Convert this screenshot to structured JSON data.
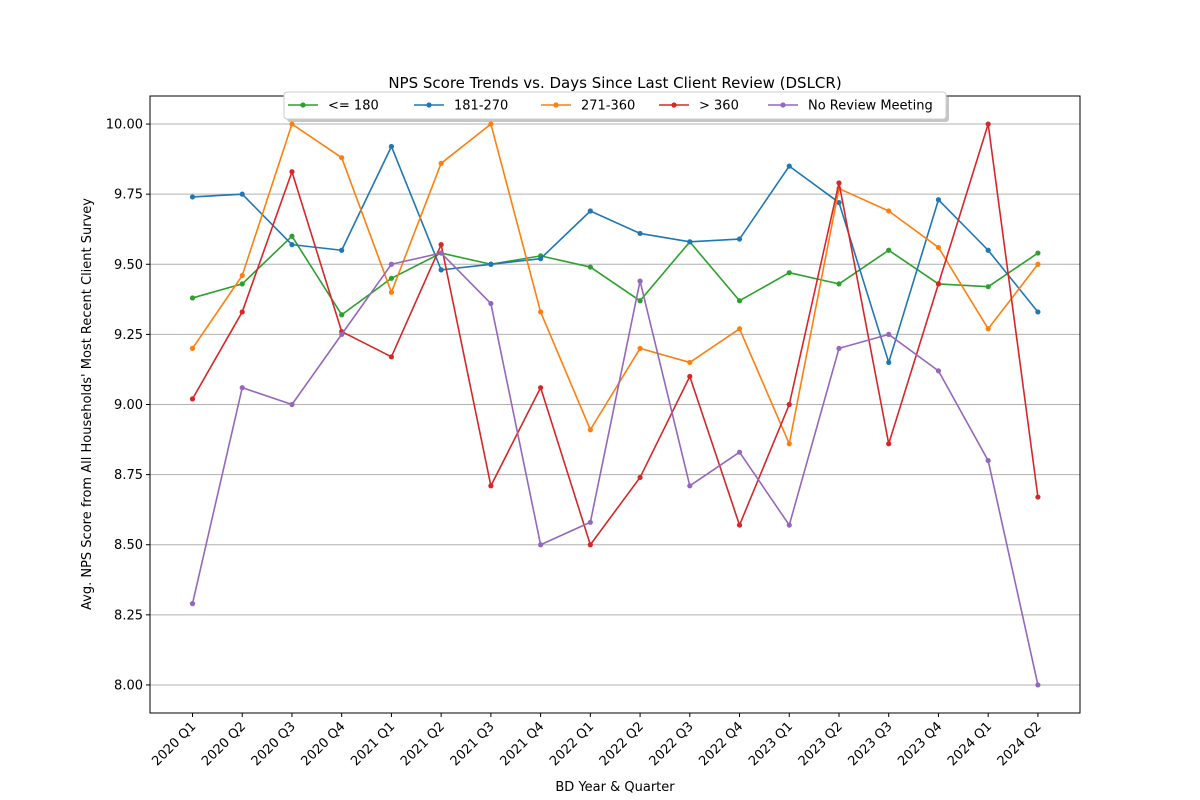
{
  "chart_data": {
    "type": "line",
    "title": "NPS Score Trends vs. Days Since Last Client Review (DSLCR)",
    "xlabel": "BD Year & Quarter",
    "ylabel": "Avg. NPS Score from All Households' Most Recent Client Survey",
    "ylim": [
      7.9,
      10.1
    ],
    "yticks": [
      "8.00",
      "8.25",
      "8.50",
      "8.75",
      "9.00",
      "9.25",
      "9.50",
      "9.75",
      "10.00"
    ],
    "grid": "horizontal",
    "legend_placement": "top-center",
    "categories": [
      "2020 Q1",
      "2020 Q2",
      "2020 Q3",
      "2020 Q4",
      "2021 Q1",
      "2021 Q2",
      "2021 Q3",
      "2021 Q4",
      "2022 Q1",
      "2022 Q2",
      "2022 Q3",
      "2022 Q4",
      "2023 Q1",
      "2023 Q2",
      "2023 Q3",
      "2023 Q4",
      "2024 Q1",
      "2024 Q2"
    ],
    "series": [
      {
        "name": "<= 180",
        "color": "#2ca02c",
        "values": [
          9.38,
          9.43,
          9.6,
          9.32,
          9.45,
          9.54,
          9.5,
          9.53,
          9.49,
          9.37,
          9.58,
          9.37,
          9.47,
          9.43,
          9.55,
          9.43,
          9.42,
          9.54
        ]
      },
      {
        "name": "181-270",
        "color": "#1f77b4",
        "values": [
          9.74,
          9.75,
          9.57,
          9.55,
          9.92,
          9.48,
          9.5,
          9.52,
          9.69,
          9.61,
          9.58,
          9.59,
          9.85,
          9.72,
          9.15,
          9.73,
          9.55,
          9.33
        ]
      },
      {
        "name": "271-360",
        "color": "#ff7f0e",
        "values": [
          9.2,
          9.46,
          10.0,
          9.88,
          9.4,
          9.86,
          10.0,
          9.33,
          8.91,
          9.2,
          9.15,
          9.27,
          8.86,
          9.77,
          9.69,
          9.56,
          9.27,
          9.5
        ]
      },
      {
        "name": "> 360",
        "color": "#d62728",
        "values": [
          9.02,
          9.33,
          9.83,
          9.26,
          9.17,
          9.57,
          8.71,
          9.06,
          8.5,
          8.74,
          9.1,
          8.57,
          9.0,
          9.79,
          8.86,
          9.43,
          10.0,
          8.67
        ]
      },
      {
        "name": "No Review Meeting",
        "color": "#9467bd",
        "values": [
          8.29,
          9.06,
          9.0,
          9.25,
          9.5,
          9.54,
          9.36,
          8.5,
          8.58,
          9.44,
          8.71,
          8.83,
          8.57,
          9.2,
          9.25,
          9.12,
          8.8,
          8.0
        ]
      }
    ]
  }
}
